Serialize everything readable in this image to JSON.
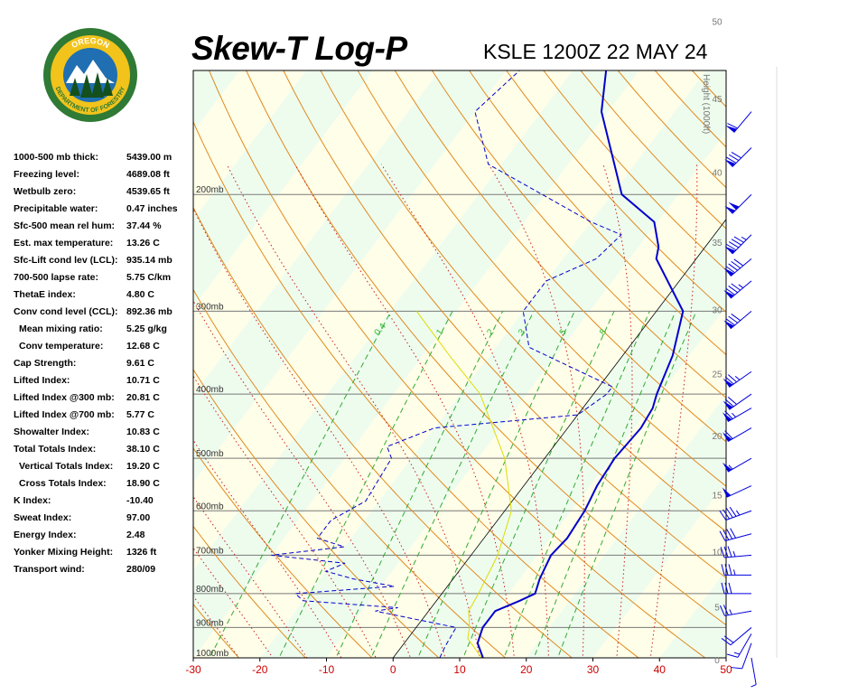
{
  "logo": {
    "text_top": "OREGON",
    "text_bottom": "DEPARTMENT OF FORESTRY",
    "colors": {
      "ring": "#2f7a34",
      "gold": "#f2c31b",
      "sky": "#1f6fb2"
    }
  },
  "header": {
    "title": "Skew-T Log-P",
    "station": "KSLE 1200Z 22 MAY 24"
  },
  "indices": [
    {
      "label": "1000-500 mb thick:",
      "value": "5439.00 m"
    },
    {
      "label": "Freezing level:",
      "value": "4689.08 ft"
    },
    {
      "label": "Wetbulb zero:",
      "value": "4539.65 ft"
    },
    {
      "label": "Precipitable water:",
      "value": "0.47 inches"
    },
    {
      "label": "Sfc-500 mean rel hum:",
      "value": "37.44 %"
    },
    {
      "label": "Est. max temperature:",
      "value": "13.26 C"
    },
    {
      "label": "Sfc-Lift cond lev (LCL):",
      "value": "935.14 mb"
    },
    {
      "label": "700-500 lapse rate:",
      "value": "5.75 C/km"
    },
    {
      "label": "ThetaE index:",
      "value": "4.80 C"
    },
    {
      "label": "Conv cond level (CCL):",
      "value": "892.36 mb"
    },
    {
      "label": "Mean mixing ratio:",
      "value": "5.25 g/kg",
      "indent": true
    },
    {
      "label": "Conv temperature:",
      "value": "12.68 C",
      "indent": true
    },
    {
      "label": "Cap Strength:",
      "value": "9.61 C"
    },
    {
      "label": "Lifted Index:",
      "value": "10.71 C"
    },
    {
      "label": "Lifted Index @300 mb:",
      "value": "20.81 C"
    },
    {
      "label": "Lifted Index @700 mb:",
      "value": "5.77 C"
    },
    {
      "label": "Showalter Index:",
      "value": "10.83 C"
    },
    {
      "label": "Total Totals Index:",
      "value": "38.10 C"
    },
    {
      "label": "Vertical Totals Index:",
      "value": "19.20 C",
      "indent": true
    },
    {
      "label": "Cross Totals Index:",
      "value": "18.90 C",
      "indent": true
    },
    {
      "label": "K Index:",
      "value": "-10.40"
    },
    {
      "label": "Sweat Index:",
      "value": "97.00"
    },
    {
      "label": "Energy Index:",
      "value": "2.48"
    },
    {
      "label": "Yonker Mixing Height:",
      "value": "1326 ft"
    },
    {
      "label": "Transport wind:",
      "value": "280/09"
    }
  ],
  "chart_data": {
    "type": "line",
    "title": "Skew-T Log-P",
    "x_axis": {
      "ticks": [
        -30,
        -20,
        -10,
        0,
        10,
        20,
        30,
        40,
        50
      ],
      "range": [
        -30,
        50
      ],
      "color": "#cc0000"
    },
    "pressure_labels": [
      {
        "p": 200,
        "text": "200mb"
      },
      {
        "p": 300,
        "text": "300mb"
      },
      {
        "p": 400,
        "text": "400mb"
      },
      {
        "p": 500,
        "text": "500mb"
      },
      {
        "p": 600,
        "text": "600mb"
      },
      {
        "p": 700,
        "text": "700mb"
      },
      {
        "p": 800,
        "text": "800mb"
      },
      {
        "p": 900,
        "text": "900mb"
      },
      {
        "p": 1000,
        "text": "1000mb"
      }
    ],
    "height_axis": {
      "label": "Height (1000ft)",
      "ticks": [
        0,
        5,
        10,
        15,
        20,
        25,
        30,
        35,
        40,
        45,
        50
      ]
    },
    "mixing_ratio_labels": [
      "0.4",
      "1",
      "2",
      "3",
      "5",
      "8"
    ],
    "series": [
      {
        "role": "temperature",
        "color": "#0000cc",
        "points": [
          [
            1000,
            13.5
          ],
          [
            950,
            11
          ],
          [
            900,
            10
          ],
          [
            850,
            10
          ],
          [
            820,
            12.5
          ],
          [
            800,
            14
          ],
          [
            760,
            13
          ],
          [
            700,
            12
          ],
          [
            660,
            12.5
          ],
          [
            600,
            12
          ],
          [
            550,
            11
          ],
          [
            500,
            10.5
          ],
          [
            450,
            11
          ],
          [
            420,
            10.5
          ],
          [
            400,
            9.5
          ],
          [
            350,
            7.5
          ],
          [
            300,
            4
          ],
          [
            250,
            -6
          ],
          [
            240,
            -7
          ],
          [
            220,
            -10.5
          ],
          [
            200,
            -18.5
          ],
          [
            150,
            -31
          ],
          [
            130,
            -35
          ]
        ]
      },
      {
        "role": "dewpoint",
        "color": "#0000cc",
        "dashed": true,
        "points": [
          [
            1000,
            7
          ],
          [
            960,
            6.5
          ],
          [
            900,
            6
          ],
          [
            850,
            -8
          ],
          [
            840,
            -5
          ],
          [
            820,
            -20
          ],
          [
            800,
            -22
          ],
          [
            780,
            -8
          ],
          [
            760,
            -15
          ],
          [
            740,
            -20
          ],
          [
            720,
            -18
          ],
          [
            700,
            -30
          ],
          [
            680,
            -20
          ],
          [
            660,
            -25
          ],
          [
            620,
            -25
          ],
          [
            580,
            -22
          ],
          [
            500,
            -23
          ],
          [
            480,
            -25
          ],
          [
            450,
            -20
          ],
          [
            430,
            0
          ],
          [
            400,
            2
          ],
          [
            390,
            2
          ],
          [
            340,
            -15
          ],
          [
            300,
            -20
          ],
          [
            270,
            -20
          ],
          [
            250,
            -15
          ],
          [
            230,
            -14
          ],
          [
            220,
            -20
          ],
          [
            180,
            -42
          ],
          [
            150,
            -50
          ],
          [
            130,
            -48
          ]
        ]
      },
      {
        "role": "parcel",
        "color": "#dddd00",
        "points": [
          [
            1000,
            13.3
          ],
          [
            935,
            9
          ],
          [
            900,
            8
          ],
          [
            850,
            6
          ],
          [
            800,
            5.5
          ],
          [
            700,
            4
          ],
          [
            600,
            1
          ],
          [
            500,
            -6
          ],
          [
            400,
            -17
          ],
          [
            350,
            -26
          ],
          [
            300,
            -36
          ]
        ]
      }
    ],
    "wind_barbs": [
      {
        "p": 1000,
        "dir": 170,
        "kt": 5
      },
      {
        "p": 950,
        "dir": 200,
        "kt": 10
      },
      {
        "p": 920,
        "dir": 210,
        "kt": 15
      },
      {
        "p": 900,
        "dir": 230,
        "kt": 20
      },
      {
        "p": 850,
        "dir": 260,
        "kt": 25
      },
      {
        "p": 800,
        "dir": 270,
        "kt": 30
      },
      {
        "p": 750,
        "dir": 270,
        "kt": 35
      },
      {
        "p": 700,
        "dir": 265,
        "kt": 35
      },
      {
        "p": 650,
        "dir": 255,
        "kt": 40
      },
      {
        "p": 600,
        "dir": 250,
        "kt": 45
      },
      {
        "p": 550,
        "dir": 245,
        "kt": 50
      },
      {
        "p": 500,
        "dir": 240,
        "kt": 55
      },
      {
        "p": 450,
        "dir": 240,
        "kt": 60
      },
      {
        "p": 420,
        "dir": 240,
        "kt": 65
      },
      {
        "p": 400,
        "dir": 235,
        "kt": 70
      },
      {
        "p": 370,
        "dir": 235,
        "kt": 75
      },
      {
        "p": 300,
        "dir": 230,
        "kt": 80
      },
      {
        "p": 270,
        "dir": 230,
        "kt": 85
      },
      {
        "p": 250,
        "dir": 230,
        "kt": 90
      },
      {
        "p": 230,
        "dir": 225,
        "kt": 95
      },
      {
        "p": 200,
        "dir": 225,
        "kt": 100
      },
      {
        "p": 170,
        "dir": 225,
        "kt": 80
      },
      {
        "p": 150,
        "dir": 220,
        "kt": 60
      }
    ]
  }
}
